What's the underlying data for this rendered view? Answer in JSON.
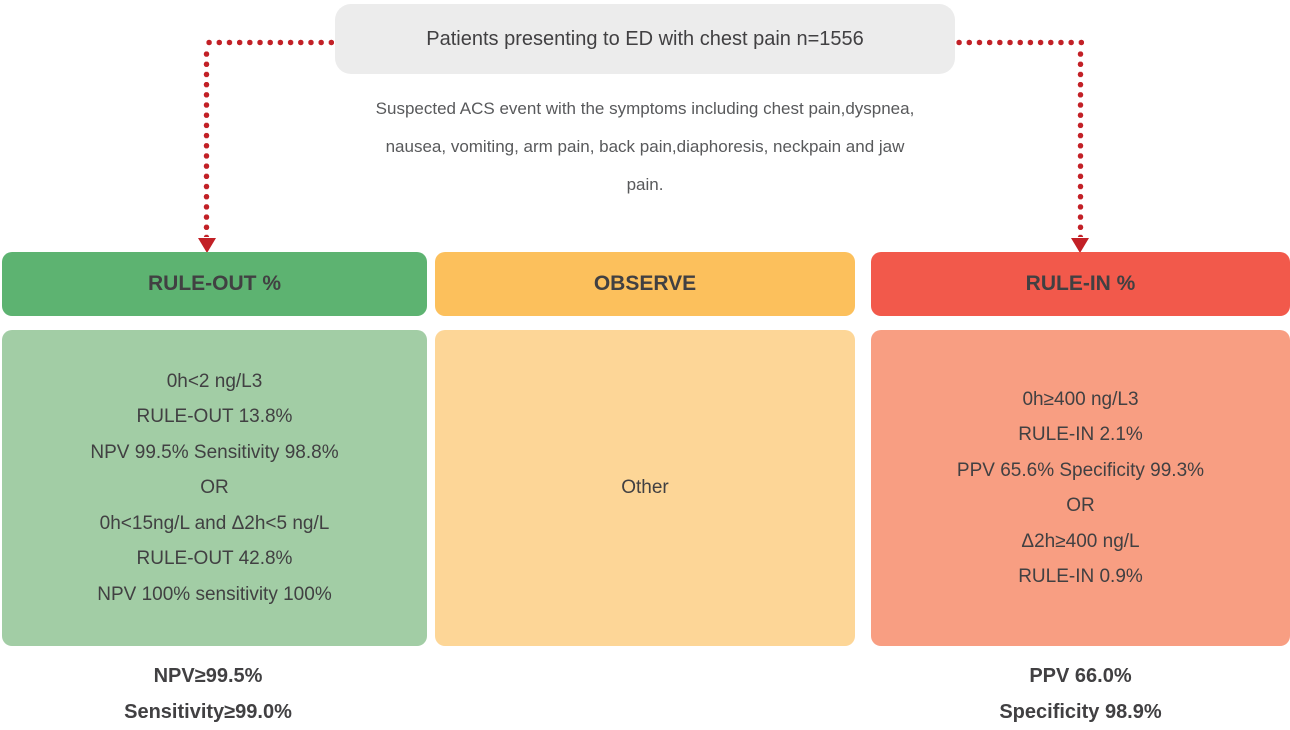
{
  "top_box": {
    "label": "Patients presenting to ED with chest pain n=1556"
  },
  "subtitle_lines": [
    "Suspected ACS event with the symptoms including chest pain,dyspnea,",
    "nausea, vomiting, arm pain, back pain,diaphoresis, neckpain and jaw",
    "pain."
  ],
  "columns": [
    {
      "id": "rule-out",
      "header": "RULE-OUT %",
      "lines": [
        "0h<2 ng/L3",
        "RULE-OUT 13.8%",
        "NPV 99.5% Sensitivity 98.8%",
        "OR",
        "0h<15ng/L and Δ2h<5 ng/L",
        "RULE-OUT 42.8%",
        "NPV 100% sensitivity 100%"
      ],
      "footer": [
        "NPV≥99.5%",
        "Sensitivity≥99.0%"
      ]
    },
    {
      "id": "observe",
      "header": "OBSERVE",
      "lines": [
        "Other"
      ],
      "footer": []
    },
    {
      "id": "rule-in",
      "header": "RULE-IN %",
      "lines": [
        "0h≥400 ng/L3",
        "RULE-IN 2.1%",
        "PPV 65.6% Specificity 99.3%",
        "OR",
        "Δ2h≥400 ng/L",
        "RULE-IN 0.9%"
      ],
      "footer": [
        "PPV 66.0%",
        "Specificity 98.9%"
      ]
    }
  ],
  "connectors": {
    "left_target": "rule-out",
    "right_target": "rule-in",
    "style": "dotted-arrow"
  },
  "colors": {
    "arrow": "#c22026",
    "rule_out_header": "#5db371",
    "rule_out_body": "#a2cda5",
    "observe_header": "#fcc05c",
    "observe_body": "#fdd697",
    "rule_in_header": "#f2594b",
    "rule_in_body": "#f89e82",
    "top_box_bg": "#ececec",
    "text_dark": "#414042",
    "text_gray": "#58595b"
  }
}
